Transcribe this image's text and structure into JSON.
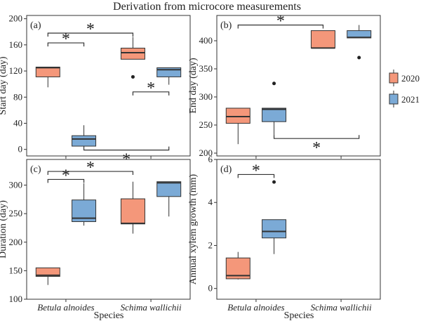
{
  "figure_title": "Derivation from microcore measurements",
  "legend": {
    "items": [
      {
        "label": "2020",
        "color": "#F4977A"
      },
      {
        "label": "2021",
        "color": "#7BAAD6"
      }
    ]
  },
  "colors": {
    "2020": "#F4977A",
    "2021": "#7BAAD6",
    "line": "#333333"
  },
  "x_title": "Species",
  "chart_data": [
    {
      "type": "box",
      "panel_label": "(a)",
      "ylabel": "Start day (day)",
      "categories": [
        "Betula alnoides",
        "Schima wallichii"
      ],
      "show_category_labels": false,
      "yticks": [
        0,
        40,
        80,
        120,
        160,
        200
      ],
      "ylim": [
        -10,
        205
      ],
      "series": [
        {
          "name": "2020",
          "boxes": [
            {
              "min": 95,
              "q1": 111,
              "median": 125,
              "q3": 126,
              "max": 126,
              "outliers": []
            },
            {
              "min": 138,
              "q1": 138,
              "median": 148,
              "q3": 155,
              "max": 172,
              "outliers": [
                111
              ]
            }
          ]
        },
        {
          "name": "2021",
          "boxes": [
            {
              "min": 4,
              "q1": 5,
              "median": 16,
              "q3": 21,
              "max": 37,
              "outliers": []
            },
            {
              "min": 99,
              "q1": 111,
              "median": 122,
              "q3": 125,
              "max": 125,
              "outliers": []
            }
          ]
        }
      ],
      "significance": [
        {
          "from": 0,
          "to": 2,
          "y": 178,
          "symbol": "*"
        },
        {
          "from": 0,
          "to": 1,
          "y": 163,
          "symbol": "*"
        },
        {
          "from": 3,
          "to": 2,
          "y": 88,
          "symbol": "*"
        },
        {
          "from": 1,
          "to": 3,
          "y": -1,
          "symbol": "*",
          "below": true
        }
      ]
    },
    {
      "type": "box",
      "panel_label": "(b)",
      "ylabel": "End day (day)",
      "categories": [
        "Betula alnoides",
        "Schima wallichii"
      ],
      "show_category_labels": false,
      "yticks": [
        200,
        250,
        300,
        350,
        400
      ],
      "ylim": [
        195,
        445
      ],
      "series": [
        {
          "name": "2020",
          "boxes": [
            {
              "min": 216,
              "q1": 253,
              "median": 265,
              "q3": 280,
              "max": 280,
              "outliers": []
            },
            {
              "min": 387,
              "q1": 387,
              "median": 387,
              "q3": 418,
              "max": 418,
              "outliers": []
            }
          ]
        },
        {
          "name": "2021",
          "boxes": [
            {
              "min": 232,
              "q1": 256,
              "median": 278,
              "q3": 280,
              "max": 280,
              "outliers": [
                324
              ]
            },
            {
              "min": 405,
              "q1": 405,
              "median": 406,
              "q3": 418,
              "max": 428,
              "outliers": [
                370
              ]
            }
          ]
        }
      ],
      "significance": [
        {
          "from": 0,
          "to": 2,
          "y": 428,
          "symbol": "*"
        },
        {
          "from": 1,
          "to": 3,
          "y": 226,
          "symbol": "*",
          "below": true
        }
      ]
    },
    {
      "type": "box",
      "panel_label": "(c)",
      "ylabel": "Duration (day)",
      "categories": [
        "Betula alnoides",
        "Schima wallichii"
      ],
      "show_category_labels": true,
      "yticks": [
        100,
        150,
        200,
        250,
        300
      ],
      "ylim": [
        100,
        345
      ],
      "series": [
        {
          "name": "2020",
          "boxes": [
            {
              "min": 125,
              "q1": 140,
              "median": 142,
              "q3": 155,
              "max": 155,
              "outliers": []
            },
            {
              "min": 215,
              "q1": 232,
              "median": 233,
              "q3": 276,
              "max": 306,
              "outliers": []
            }
          ]
        },
        {
          "name": "2021",
          "boxes": [
            {
              "min": 229,
              "q1": 236,
              "median": 242,
              "q3": 274,
              "max": 303,
              "outliers": []
            },
            {
              "min": 245,
              "q1": 280,
              "median": 304,
              "q3": 306,
              "max": 306,
              "outliers": []
            }
          ]
        }
      ],
      "significance": [
        {
          "from": 0,
          "to": 2,
          "y": 324,
          "symbol": "*"
        },
        {
          "from": 0,
          "to": 1,
          "y": 310,
          "symbol": "*"
        }
      ]
    },
    {
      "type": "box",
      "panel_label": "(d)",
      "ylabel": "Annual xylem growth (mm)",
      "categories": [
        "Betula alnoides",
        "Schima wallichii"
      ],
      "show_category_labels": true,
      "yticks": [
        0,
        2,
        4,
        6
      ],
      "ylim": [
        -0.5,
        6
      ],
      "series": [
        {
          "name": "2020",
          "boxes": [
            {
              "min": 0.42,
              "q1": 0.45,
              "median": 0.6,
              "q3": 1.42,
              "max": 1.7,
              "outliers": []
            }
          ]
        },
        {
          "name": "2021",
          "boxes": [
            {
              "min": 1.6,
              "q1": 2.35,
              "median": 2.65,
              "q3": 3.2,
              "max": 3.2,
              "outliers": [
                4.95
              ]
            }
          ]
        }
      ],
      "significance": [
        {
          "from": 0,
          "to": 1,
          "y": 5.3,
          "symbol": "*"
        }
      ]
    }
  ]
}
